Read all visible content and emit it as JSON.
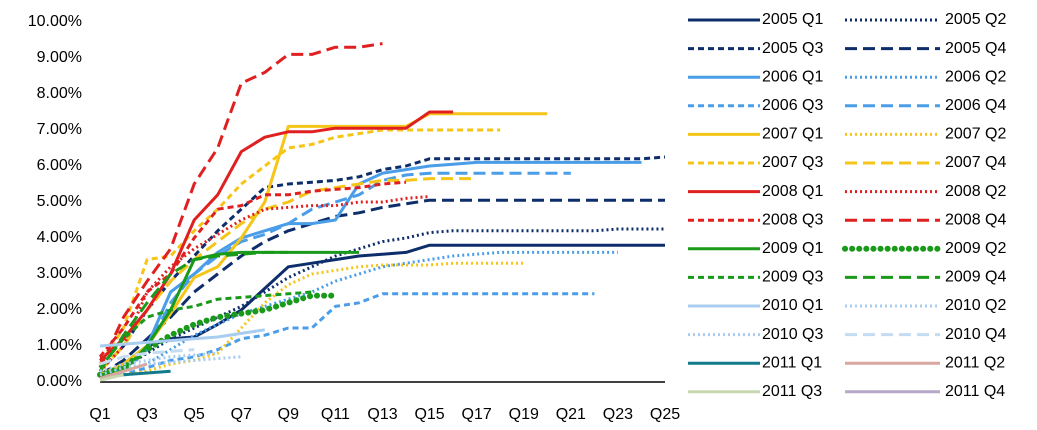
{
  "chart_data": {
    "type": "line",
    "categories": [
      "Q1",
      null,
      "Q3",
      null,
      "Q5",
      null,
      "Q7",
      null,
      "Q9",
      null,
      "Q11",
      null,
      "Q13",
      null,
      "Q15",
      null,
      "Q17",
      null,
      "Q19",
      null,
      "Q21",
      null,
      "Q23",
      null,
      "Q25"
    ],
    "ylim": [
      0,
      10
    ],
    "yticks": [
      {
        "value": 0,
        "label": "0.00%"
      },
      {
        "value": 1,
        "label": "1.00%"
      },
      {
        "value": 2,
        "label": "2.00%"
      },
      {
        "value": 3,
        "label": "3.00%"
      },
      {
        "value": 4,
        "label": "4.00%"
      },
      {
        "value": 5,
        "label": "5.00%"
      },
      {
        "value": 6,
        "label": "6.00%"
      },
      {
        "value": 7,
        "label": "7.00%"
      },
      {
        "value": 8,
        "label": "8.00%"
      },
      {
        "value": 9,
        "label": "9.00%"
      },
      {
        "value": 10,
        "label": "10.00%"
      }
    ],
    "legend": "right",
    "series": [
      {
        "name": "2005 Q1",
        "color": "#0d2d6b",
        "style": "solid",
        "values": [
          0.1,
          0.5,
          1.0,
          1.2,
          1.25,
          1.6,
          2.0,
          2.6,
          3.2,
          3.3,
          3.4,
          3.5,
          3.55,
          3.6,
          3.8,
          3.8,
          3.8,
          3.8,
          3.8,
          3.8,
          3.8,
          3.8,
          3.8,
          3.8,
          3.8
        ]
      },
      {
        "name": "2005 Q2",
        "color": "#0d2d6b",
        "style": "dotted",
        "values": [
          0.1,
          0.4,
          0.8,
          1.2,
          1.5,
          1.8,
          2.1,
          2.5,
          2.9,
          3.2,
          3.5,
          3.7,
          3.9,
          4.0,
          4.15,
          4.2,
          4.2,
          4.2,
          4.2,
          4.2,
          4.2,
          4.2,
          4.25,
          4.25,
          4.25
        ]
      },
      {
        "name": "2005 Q3",
        "color": "#0d2d6b",
        "style": "dashed",
        "values": [
          0.3,
          1.0,
          2.0,
          2.8,
          3.5,
          4.2,
          4.8,
          5.4,
          5.5,
          5.55,
          5.6,
          5.7,
          5.9,
          6.0,
          6.2,
          6.2,
          6.2,
          6.2,
          6.2,
          6.2,
          6.2,
          6.2,
          6.2,
          6.2,
          6.25
        ]
      },
      {
        "name": "2005 Q4",
        "color": "#0d2d6b",
        "style": "longdash",
        "values": [
          0.2,
          0.6,
          1.2,
          1.8,
          2.5,
          3.0,
          3.5,
          3.9,
          4.2,
          4.4,
          4.6,
          4.7,
          4.85,
          4.95,
          5.05,
          5.05,
          5.05,
          5.05,
          5.05,
          5.05,
          5.05,
          5.05,
          5.05,
          5.05,
          5.05
        ]
      },
      {
        "name": "2006 Q1",
        "color": "#4a9de8",
        "style": "solid",
        "values": [
          0.2,
          0.4,
          1.0,
          2.5,
          3.0,
          3.6,
          4.0,
          4.2,
          4.4,
          4.4,
          4.5,
          5.5,
          5.8,
          5.9,
          6.0,
          6.05,
          6.1,
          6.1,
          6.1,
          6.1,
          6.1,
          6.1,
          6.1,
          6.1,
          null
        ]
      },
      {
        "name": "2006 Q2",
        "color": "#4a9de8",
        "style": "dotted",
        "values": [
          0.2,
          0.3,
          0.5,
          0.9,
          1.3,
          1.6,
          1.9,
          2.1,
          2.3,
          2.5,
          2.8,
          3.0,
          3.2,
          3.3,
          3.4,
          3.5,
          3.55,
          3.6,
          3.6,
          3.6,
          3.6,
          3.6,
          3.6,
          null,
          null
        ]
      },
      {
        "name": "2006 Q3",
        "color": "#4a9de8",
        "style": "dashed",
        "values": [
          0.1,
          0.2,
          0.4,
          0.6,
          0.7,
          0.9,
          1.2,
          1.3,
          1.5,
          1.5,
          2.1,
          2.2,
          2.45,
          2.45,
          2.45,
          2.45,
          2.45,
          2.45,
          2.45,
          2.45,
          2.45,
          2.45,
          null,
          null,
          null
        ]
      },
      {
        "name": "2006 Q4",
        "color": "#4a9de8",
        "style": "longdash",
        "values": [
          0.1,
          0.3,
          0.9,
          2.2,
          3.0,
          3.5,
          3.9,
          4.1,
          4.4,
          4.8,
          5.0,
          5.2,
          5.6,
          5.75,
          5.8,
          5.8,
          5.8,
          5.8,
          5.8,
          5.8,
          5.8,
          null,
          null,
          null,
          null
        ]
      },
      {
        "name": "2007 Q1",
        "color": "#f5c518",
        "style": "solid",
        "values": [
          0.2,
          0.5,
          1.0,
          1.9,
          2.9,
          3.2,
          4.0,
          5.0,
          7.1,
          7.1,
          7.1,
          7.1,
          7.1,
          7.1,
          7.45,
          7.45,
          7.45,
          7.45,
          7.45,
          7.45,
          null,
          null,
          null,
          null,
          null
        ]
      },
      {
        "name": "2007 Q2",
        "color": "#f5c518",
        "style": "dotted",
        "values": [
          0.1,
          0.2,
          0.3,
          0.5,
          0.6,
          0.8,
          1.5,
          2.2,
          2.7,
          3.0,
          3.1,
          3.2,
          3.25,
          3.25,
          3.25,
          3.3,
          3.3,
          3.3,
          3.3,
          null,
          null,
          null,
          null,
          null,
          null
        ]
      },
      {
        "name": "2007 Q3",
        "color": "#f5c518",
        "style": "dashed",
        "values": [
          0.5,
          1.5,
          3.4,
          3.5,
          4.2,
          4.8,
          5.5,
          6.0,
          6.5,
          6.6,
          6.8,
          6.9,
          7.0,
          7.0,
          7.0,
          7.0,
          7.0,
          7.0,
          null,
          null,
          null,
          null,
          null,
          null,
          null
        ]
      },
      {
        "name": "2007 Q4",
        "color": "#f5c518",
        "style": "longdash",
        "values": [
          0.3,
          1.0,
          2.0,
          2.8,
          3.4,
          3.9,
          4.4,
          4.8,
          5.0,
          5.3,
          5.4,
          5.5,
          5.6,
          5.6,
          5.65,
          5.65,
          5.65,
          null,
          null,
          null,
          null,
          null,
          null,
          null,
          null
        ]
      },
      {
        "name": "2008 Q1",
        "color": "#e02020",
        "style": "solid",
        "values": [
          0.6,
          1.2,
          2.0,
          3.0,
          4.5,
          5.2,
          6.4,
          6.8,
          6.95,
          6.95,
          7.05,
          7.05,
          7.05,
          7.05,
          7.5,
          7.5,
          null,
          null,
          null,
          null,
          null,
          null,
          null,
          null,
          null
        ]
      },
      {
        "name": "2008 Q2",
        "color": "#e02020",
        "style": "dotted",
        "values": [
          0.3,
          1.0,
          2.5,
          3.2,
          3.7,
          4.1,
          4.5,
          4.8,
          4.85,
          4.9,
          4.9,
          5.0,
          5.0,
          5.1,
          5.15,
          null,
          null,
          null,
          null,
          null,
          null,
          null,
          null,
          null,
          null
        ]
      },
      {
        "name": "2008 Q3",
        "color": "#e02020",
        "style": "dashed",
        "values": [
          0.7,
          1.5,
          2.5,
          3.0,
          4.0,
          4.8,
          4.9,
          5.2,
          5.2,
          5.3,
          5.35,
          5.4,
          5.5,
          5.55,
          null,
          null,
          null,
          null,
          null,
          null,
          null,
          null,
          null,
          null,
          null
        ]
      },
      {
        "name": "2008 Q4",
        "color": "#e02020",
        "style": "longdash",
        "values": [
          0.4,
          1.8,
          2.8,
          3.7,
          5.5,
          6.5,
          8.3,
          8.6,
          9.1,
          9.1,
          9.3,
          9.3,
          9.4,
          null,
          null,
          null,
          null,
          null,
          null,
          null,
          null,
          null,
          null,
          null,
          null
        ]
      },
      {
        "name": "2009 Q1",
        "color": "#1a9a1a",
        "style": "solid",
        "values": [
          0.2,
          0.3,
          1.0,
          2.0,
          3.4,
          3.55,
          3.6,
          3.6,
          3.6,
          3.6,
          3.6,
          3.6,
          null,
          null,
          null,
          null,
          null,
          null,
          null,
          null,
          null,
          null,
          null,
          null,
          null
        ]
      },
      {
        "name": "2009 Q2",
        "color": "#1a9a1a",
        "style": "dots",
        "values": [
          0.2,
          0.4,
          0.9,
          1.3,
          1.6,
          1.8,
          1.9,
          2.0,
          2.2,
          2.4,
          2.4,
          null,
          null,
          null,
          null,
          null,
          null,
          null,
          null,
          null,
          null,
          null,
          null,
          null,
          null
        ]
      },
      {
        "name": "2009 Q3",
        "color": "#1a9a1a",
        "style": "dashed",
        "values": [
          0.4,
          1.2,
          1.8,
          2.0,
          2.1,
          2.3,
          2.35,
          2.4,
          2.45,
          2.5,
          null,
          null,
          null,
          null,
          null,
          null,
          null,
          null,
          null,
          null,
          null,
          null,
          null,
          null,
          null
        ]
      },
      {
        "name": "2009 Q4",
        "color": "#1a9a1a",
        "style": "longdash",
        "values": [
          0.3,
          1.3,
          2.2,
          3.0,
          3.4,
          3.5,
          3.55,
          3.6,
          3.6,
          null,
          null,
          null,
          null,
          null,
          null,
          null,
          null,
          null,
          null,
          null,
          null,
          null,
          null,
          null,
          null
        ]
      },
      {
        "name": "2010 Q1",
        "color": "#a8cdf0",
        "style": "solid",
        "values": [
          1.0,
          1.05,
          1.1,
          1.15,
          1.2,
          1.25,
          1.35,
          1.45,
          null,
          null,
          null,
          null,
          null,
          null,
          null,
          null,
          null,
          null,
          null,
          null,
          null,
          null,
          null,
          null,
          null
        ]
      },
      {
        "name": "2010 Q2",
        "color": "#a8cdf0",
        "style": "dotted",
        "values": [
          0.2,
          0.4,
          0.5,
          0.55,
          0.6,
          0.65,
          0.7,
          null,
          null,
          null,
          null,
          null,
          null,
          null,
          null,
          null,
          null,
          null,
          null,
          null,
          null,
          null,
          null,
          null,
          null
        ]
      },
      {
        "name": "2010 Q3",
        "color": "#a8cdf0",
        "style": "dotted",
        "values": [
          0.3,
          0.5,
          0.6,
          0.7,
          0.75,
          0.8,
          null,
          null,
          null,
          null,
          null,
          null,
          null,
          null,
          null,
          null,
          null,
          null,
          null,
          null,
          null,
          null,
          null,
          null,
          null
        ]
      },
      {
        "name": "2010 Q4",
        "color": "#c4dcf2",
        "style": "longdash",
        "values": [
          0.5,
          0.7,
          0.8,
          0.85,
          0.9,
          null,
          null,
          null,
          null,
          null,
          null,
          null,
          null,
          null,
          null,
          null,
          null,
          null,
          null,
          null,
          null,
          null,
          null,
          null,
          null
        ]
      },
      {
        "name": "2011 Q1",
        "color": "#127a8a",
        "style": "solid",
        "values": [
          0.1,
          0.2,
          0.25,
          0.3,
          null,
          null,
          null,
          null,
          null,
          null,
          null,
          null,
          null,
          null,
          null,
          null,
          null,
          null,
          null,
          null,
          null,
          null,
          null,
          null,
          null
        ]
      },
      {
        "name": "2011 Q2",
        "color": "#d8a8a0",
        "style": "solid",
        "values": [
          0.1,
          0.3,
          0.5,
          null,
          null,
          null,
          null,
          null,
          null,
          null,
          null,
          null,
          null,
          null,
          null,
          null,
          null,
          null,
          null,
          null,
          null,
          null,
          null,
          null,
          null
        ]
      },
      {
        "name": "2011 Q3",
        "color": "#c8d8b0",
        "style": "solid",
        "values": [
          0.05,
          0.2,
          null,
          null,
          null,
          null,
          null,
          null,
          null,
          null,
          null,
          null,
          null,
          null,
          null,
          null,
          null,
          null,
          null,
          null,
          null,
          null,
          null,
          null,
          null
        ]
      },
      {
        "name": "2011 Q4",
        "color": "#b8a8c8",
        "style": "solid",
        "values": [
          0.1,
          null,
          null,
          null,
          null,
          null,
          null,
          null,
          null,
          null,
          null,
          null,
          null,
          null,
          null,
          null,
          null,
          null,
          null,
          null,
          null,
          null,
          null,
          null,
          null
        ]
      }
    ]
  }
}
